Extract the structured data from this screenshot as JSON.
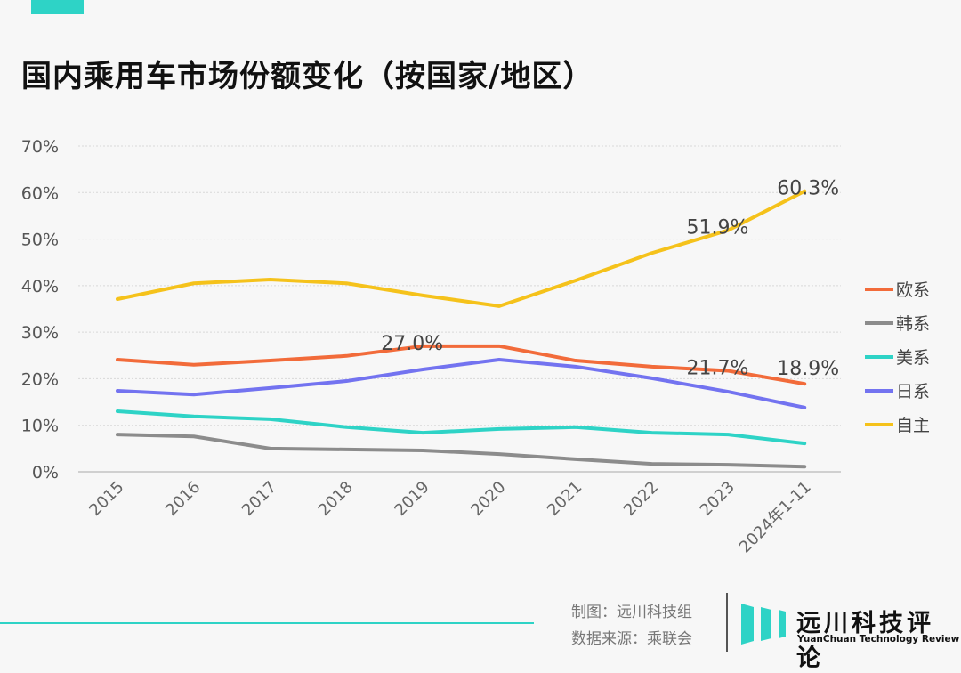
{
  "title": "国内乘用车市场份额变化（按国家/地区）",
  "chart_data": {
    "type": "line",
    "title": "国内乘用车市场份额变化（按国家/地区）",
    "categories": [
      "2015",
      "2016",
      "2017",
      "2018",
      "2019",
      "2020",
      "2021",
      "2022",
      "2023",
      "2024年1-11"
    ],
    "ylim": [
      0,
      70
    ],
    "yticks": [
      "0%",
      "10%",
      "20%",
      "30%",
      "40%",
      "50%",
      "60%",
      "70%"
    ],
    "grid": true,
    "legend_position": "right",
    "series": [
      {
        "name": "欧系",
        "color": "#f26b3a",
        "values": [
          24.1,
          23.0,
          23.9,
          24.9,
          27.0,
          27.0,
          23.9,
          22.6,
          21.7,
          18.9
        ]
      },
      {
        "name": "韩系",
        "color": "#8c8c8c",
        "values": [
          8.0,
          7.6,
          5.0,
          4.8,
          4.6,
          3.8,
          2.7,
          1.7,
          1.5,
          1.1
        ]
      },
      {
        "name": "美系",
        "color": "#2ed3c6",
        "values": [
          13.0,
          11.9,
          11.3,
          9.6,
          8.4,
          9.2,
          9.6,
          8.4,
          8.0,
          6.1
        ]
      },
      {
        "name": "日系",
        "color": "#7373f0",
        "values": [
          17.4,
          16.6,
          18.0,
          19.5,
          22.0,
          24.1,
          22.6,
          20.1,
          17.2,
          13.8
        ]
      },
      {
        "name": "自主",
        "color": "#f5c21b",
        "values": [
          37.1,
          40.5,
          41.3,
          40.5,
          37.9,
          35.6,
          41.1,
          47.0,
          51.9,
          60.3
        ]
      }
    ],
    "annotations": [
      {
        "series": "自主",
        "category": "2024年1-11",
        "text": "60.3%"
      },
      {
        "series": "自主",
        "category": "2023",
        "text": "51.9%"
      },
      {
        "series": "欧系",
        "category": "2019",
        "text": "27.0%"
      },
      {
        "series": "欧系",
        "category": "2023",
        "text": "21.7%"
      },
      {
        "series": "欧系",
        "category": "2024年1-11",
        "text": "18.9%"
      }
    ]
  },
  "footer": {
    "credit_maker": "制图：远川科技组",
    "credit_source": "数据来源：乘联会",
    "logo_cn": "远川科技评论",
    "logo_en": "YuanChuan Technology Review"
  }
}
